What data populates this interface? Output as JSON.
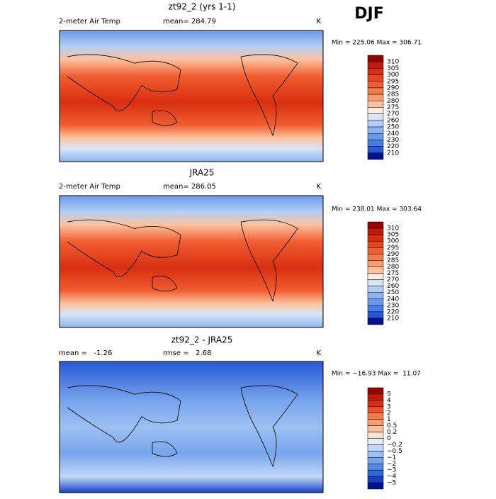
{
  "header": {
    "season": "DJF"
  },
  "panels": [
    {
      "title": "zt92_2 (yrs 1-1)",
      "variable": "2-meter Air Temp",
      "mean": "mean= 284.79",
      "units": "K",
      "range": "Min = 225.06 Max = 306.71",
      "colorbar": {
        "labels": [
          "310",
          "305",
          "300",
          "295",
          "290",
          "285",
          "280",
          "275",
          "270",
          "260",
          "250",
          "240",
          "230",
          "220",
          "210"
        ],
        "colors": [
          "#9b0000",
          "#c0180a",
          "#d92e10",
          "#e6461e",
          "#ef5e30",
          "#f47a48",
          "#f99b70",
          "#fcc2a0",
          "#fdeedd",
          "#d6e6f8",
          "#b2cff4",
          "#8cb5ef",
          "#6a99ea",
          "#477ce4",
          "#2658d8",
          "#00128e"
        ]
      }
    },
    {
      "title": "JRA25",
      "variable": "2-meter Air Temp",
      "mean": "mean= 286.05",
      "units": "K",
      "range": "Min = 238.01 Max = 303.64",
      "colorbar": {
        "labels": [
          "310",
          "305",
          "300",
          "295",
          "290",
          "285",
          "280",
          "275",
          "270",
          "260",
          "250",
          "240",
          "230",
          "220",
          "210"
        ],
        "colors": [
          "#9b0000",
          "#c0180a",
          "#d92e10",
          "#e6461e",
          "#ef5e30",
          "#f47a48",
          "#f99b70",
          "#fcc2a0",
          "#fdeedd",
          "#d6e6f8",
          "#b2cff4",
          "#8cb5ef",
          "#6a99ea",
          "#477ce4",
          "#2658d8",
          "#00128e"
        ]
      }
    },
    {
      "title": "zt92_2 - JRA25",
      "mean": "mean =   -1.26",
      "rmse": "rmse =   2.68",
      "units": "K",
      "range": "Min = −16.93 Max =  11.07",
      "colorbar": {
        "labels": [
          "5",
          "4",
          "3",
          "2",
          "1",
          "0.5",
          "0.2",
          "0",
          "−0.2",
          "−0.5",
          "−1",
          "−2",
          "−3",
          "−4",
          "−5"
        ],
        "colors": [
          "#9b0000",
          "#c0180a",
          "#d92e10",
          "#ea5228",
          "#f47a48",
          "#f99b70",
          "#fcc2a0",
          "#fde4d0",
          "#e4eefa",
          "#c2d8f6",
          "#9cc0f1",
          "#78a4ec",
          "#5488e6",
          "#3068dc",
          "#1440c8",
          "#00128e"
        ]
      }
    }
  ]
}
